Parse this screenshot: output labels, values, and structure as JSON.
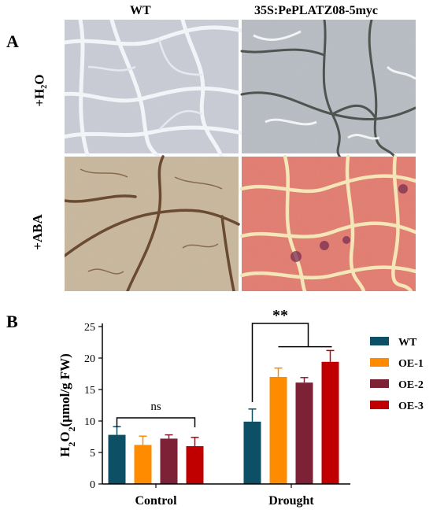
{
  "panel_a": {
    "label": "A",
    "columns": [
      "WT",
      "35S:PePLATZ08-5myc"
    ],
    "rows": [
      "+H₂O",
      "+ABA"
    ]
  },
  "panel_b": {
    "label": "B"
  },
  "chart_data": {
    "type": "bar",
    "categories": [
      "Control",
      "Drought"
    ],
    "series": [
      {
        "name": "WT",
        "color": "#0d4f64",
        "values": [
          7.8,
          9.9
        ],
        "errors": [
          1.3,
          2.0
        ]
      },
      {
        "name": "OE-1",
        "color": "#ff8c00",
        "values": [
          6.2,
          17.0
        ],
        "errors": [
          1.4,
          1.4
        ]
      },
      {
        "name": "OE-2",
        "color": "#7d2236",
        "values": [
          7.2,
          16.1
        ],
        "errors": [
          0.6,
          0.8
        ]
      },
      {
        "name": "OE-3",
        "color": "#c00000",
        "values": [
          6.0,
          19.4
        ],
        "errors": [
          1.4,
          1.8
        ]
      }
    ],
    "ylabel": "H2O2(μmol/g FW)",
    "ylim": [
      0,
      25
    ],
    "yticks": [
      0,
      5,
      10,
      15,
      20,
      25
    ],
    "annotations": [
      {
        "text": "ns",
        "group": "Control"
      },
      {
        "text": "**",
        "group": "Drought"
      }
    ],
    "legend": "right"
  }
}
